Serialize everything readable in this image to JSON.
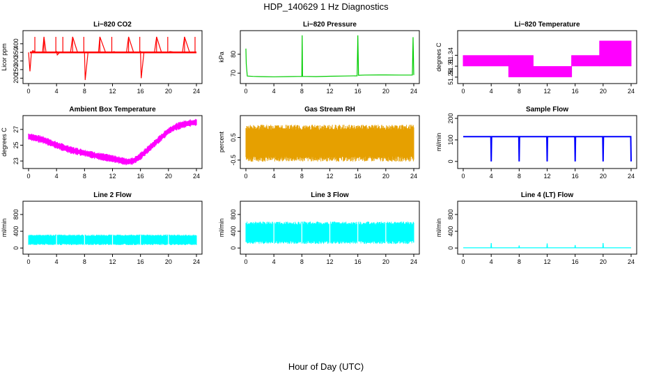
{
  "figure": {
    "title": "HDP_140629  1 Hz Diagnostics",
    "xlabel": "Hour of Day (UTC)"
  },
  "chart_data": [
    {
      "id": "co2",
      "type": "line",
      "title": "Li−820 CO2",
      "ylabel": "Licor ppm",
      "color": "#ff0000",
      "xlim": [
        0,
        24
      ],
      "xticks": [
        0,
        4,
        8,
        12,
        16,
        20,
        24
      ],
      "ylim": [
        185,
        460
      ],
      "yticks": [
        200,
        250,
        300,
        350,
        400
      ],
      "baseline": 350,
      "series": [
        {
          "x": [
            0,
            0.2,
            0.4,
            0.6,
            1.0,
            1.5,
            2.0,
            2.2,
            2.5,
            3.0,
            3.6,
            4.0,
            4.1,
            4.5,
            5.0,
            6.0,
            6.3,
            7.0,
            7.7,
            8.0,
            8.1,
            8.5,
            9.0,
            10.0,
            10.2,
            11.0,
            11.5,
            12.0,
            12.2,
            12.5,
            13.0,
            14.0,
            14.3,
            15.0,
            15.8,
            16.0,
            16.1,
            16.5,
            17.0,
            18.0,
            18.3,
            19.0,
            19.5,
            20.0,
            20.2,
            21.0,
            22.0,
            22.3,
            23.0,
            23.6,
            24.0
          ],
          "y": [
            350,
            240,
            345,
            360,
            352,
            348,
            353,
            440,
            350,
            352,
            349,
            355,
            335,
            352,
            350,
            353,
            440,
            350,
            352,
            349,
            190,
            352,
            350,
            353,
            440,
            350,
            352,
            349,
            355,
            350,
            351,
            350,
            440,
            352,
            349,
            355,
            200,
            352,
            350,
            353,
            440,
            350,
            352,
            349,
            355,
            351,
            350,
            440,
            352,
            349,
            350
          ]
        }
      ],
      "spikes_x": [
        0.9,
        2.2,
        3.9,
        4.9,
        6.3,
        7.9,
        10.2,
        11.9,
        14.3,
        15.9,
        18.3,
        19.9,
        22.3,
        23.8
      ]
    },
    {
      "id": "pressure",
      "type": "line",
      "title": "Li−820 Pressure",
      "ylabel": "kPa",
      "color": "#00cc00",
      "xlim": [
        0,
        24
      ],
      "xticks": [
        0,
        4,
        8,
        12,
        16,
        20,
        24
      ],
      "ylim": [
        66,
        91
      ],
      "yticks": [
        70,
        80
      ],
      "series": [
        {
          "x": [
            0,
            0.05,
            0.2,
            1,
            2,
            4,
            6,
            8,
            8.05,
            8.1,
            10,
            12,
            14,
            15.9,
            16,
            16.1,
            17,
            19,
            20,
            22,
            23.8,
            23.9,
            24
          ],
          "y": [
            83,
            75,
            68.5,
            68.3,
            68.2,
            68.1,
            68.2,
            68.3,
            90,
            68.3,
            68.2,
            68.4,
            68.5,
            68.6,
            90,
            68.9,
            69,
            69.1,
            69.1,
            69.0,
            69.0,
            89,
            69
          ]
        }
      ]
    },
    {
      "id": "licor-temp",
      "type": "step",
      "title": "Li−820 Temperature",
      "ylabel": "degrees C",
      "color": "#ff00ff",
      "xlim": [
        0,
        24
      ],
      "xticks": [
        0,
        4,
        8,
        12,
        16,
        20,
        24
      ],
      "ylim": [
        51.27,
        51.4
      ],
      "yticks": [
        51.28,
        51.31,
        51.34
      ],
      "band_segments": [
        {
          "x0": 0,
          "x1": 6.5,
          "low": 51.31,
          "high": 51.34
        },
        {
          "x0": 6.5,
          "x1": 10,
          "low": 51.28,
          "high": 51.34
        },
        {
          "x0": 10,
          "x1": 15.5,
          "low": 51.28,
          "high": 51.31
        },
        {
          "x0": 15.5,
          "x1": 19.5,
          "low": 51.31,
          "high": 51.34
        },
        {
          "x0": 19.5,
          "x1": 24,
          "low": 51.31,
          "high": 51.38
        }
      ]
    },
    {
      "id": "ambient-temp",
      "type": "line",
      "title": "Ambient Box Temperature",
      "ylabel": "degrees C",
      "color": "#ff00ff",
      "xlim": [
        0,
        24
      ],
      "xticks": [
        0,
        4,
        8,
        12,
        16,
        20,
        24
      ],
      "ylim": [
        22.4,
        28.4
      ],
      "yticks": [
        23,
        25,
        27
      ],
      "series": [
        {
          "x": [
            0,
            2,
            4,
            6,
            8,
            10,
            12,
            13,
            14,
            15,
            16,
            17,
            18,
            19,
            20,
            21,
            22,
            23,
            24
          ],
          "y": [
            26.1,
            25.7,
            25.0,
            24.4,
            24.0,
            23.6,
            23.3,
            23.1,
            22.9,
            23.0,
            23.6,
            24.4,
            25.2,
            26.0,
            26.8,
            27.3,
            27.6,
            27.8,
            27.9
          ]
        }
      ],
      "band_halfwidth": 0.4
    },
    {
      "id": "rh",
      "type": "band",
      "title": "Gas Stream RH",
      "ylabel": "percent",
      "color": "#e6a000",
      "xlim": [
        0,
        24
      ],
      "xticks": [
        0,
        4,
        8,
        12,
        16,
        20,
        24
      ],
      "ylim": [
        -0.75,
        1.35
      ],
      "yticks": [
        -0.5,
        0.5
      ],
      "band": {
        "low": -0.5,
        "high": 1.0
      }
    },
    {
      "id": "sample-flow",
      "type": "line",
      "title": "Sample Flow",
      "ylabel": "ml/min",
      "color": "#0000ff",
      "xlim": [
        0,
        24
      ],
      "xticks": [
        0,
        4,
        8,
        12,
        16,
        20,
        24
      ],
      "ylim": [
        -20,
        200
      ],
      "yticks": [
        0,
        100,
        200
      ],
      "series": [
        {
          "x": [
            0,
            3.95,
            4,
            4.05,
            7.95,
            8,
            8.05,
            11.95,
            12,
            12.05,
            15.95,
            16,
            16.05,
            19.95,
            20,
            20.05,
            23.95,
            24
          ],
          "y": [
            115,
            115,
            0,
            115,
            115,
            0,
            115,
            115,
            0,
            115,
            115,
            0,
            115,
            115,
            0,
            115,
            115,
            0
          ]
        }
      ]
    },
    {
      "id": "line2-flow",
      "type": "band",
      "title": "Line 2 Flow",
      "ylabel": "ml/min",
      "color": "#00ffff",
      "xlim": [
        0,
        24
      ],
      "xticks": [
        0,
        4,
        8,
        12,
        16,
        20,
        24
      ],
      "ylim": [
        -80,
        1050
      ],
      "yticks": [
        0,
        400,
        800
      ],
      "band": {
        "low": 80,
        "high": 310
      }
    },
    {
      "id": "line3-flow",
      "type": "band",
      "title": "Line 3 Flow",
      "ylabel": "ml/min",
      "color": "#00ffff",
      "xlim": [
        0,
        24
      ],
      "xticks": [
        0,
        4,
        8,
        12,
        16,
        20,
        24
      ],
      "ylim": [
        -80,
        1050
      ],
      "yticks": [
        0,
        400,
        800
      ],
      "band": {
        "low": 120,
        "high": 610
      }
    },
    {
      "id": "line4-flow",
      "type": "line",
      "title": "Line 4 (LT) Flow",
      "ylabel": "ml/min",
      "color": "#00ffff",
      "xlim": [
        0,
        24
      ],
      "xticks": [
        0,
        4,
        8,
        12,
        16,
        20,
        24
      ],
      "ylim": [
        -80,
        1050
      ],
      "yticks": [
        0,
        400,
        800
      ],
      "series": [
        {
          "x": [
            0,
            3.95,
            4,
            4.05,
            7.95,
            8,
            8.05,
            11.95,
            12,
            12.05,
            15.95,
            16,
            16.05,
            19.95,
            20,
            20.05,
            24
          ],
          "y": [
            5,
            5,
            120,
            5,
            5,
            60,
            5,
            5,
            110,
            5,
            5,
            70,
            5,
            5,
            120,
            5,
            5
          ]
        }
      ]
    }
  ]
}
